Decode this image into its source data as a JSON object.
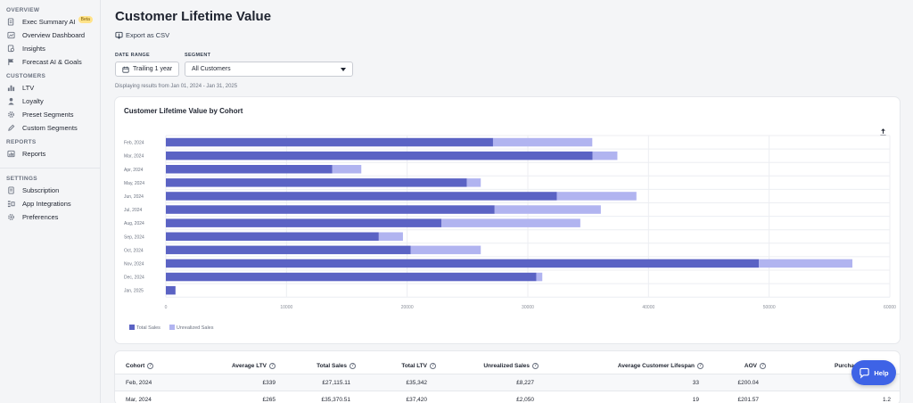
{
  "sidebar": {
    "overview_heading": "OVERVIEW",
    "overview_items": [
      {
        "label": "Exec Summary AI",
        "icon": "ai-document-icon",
        "badge": "Beta"
      },
      {
        "label": "Overview Dashboard",
        "icon": "dashboard-icon"
      },
      {
        "label": "Insights",
        "icon": "insights-icon"
      },
      {
        "label": "Forecast AI & Goals",
        "icon": "flag-icon"
      }
    ],
    "customers_heading": "CUSTOMERS",
    "customers_items": [
      {
        "label": "LTV",
        "icon": "bar-chart-icon"
      },
      {
        "label": "Loyalty",
        "icon": "person-icon"
      },
      {
        "label": "Preset Segments",
        "icon": "gear-icon"
      },
      {
        "label": "Custom Segments",
        "icon": "pencil-icon"
      }
    ],
    "reports_heading": "REPORTS",
    "reports_items": [
      {
        "label": "Reports",
        "icon": "reports-icon"
      }
    ],
    "settings_heading": "SETTINGS",
    "settings_items": [
      {
        "label": "Subscription",
        "icon": "document-icon"
      },
      {
        "label": "App Integrations",
        "icon": "integrations-icon"
      },
      {
        "label": "Preferences",
        "icon": "gear-icon"
      }
    ]
  },
  "header": {
    "title": "Customer Lifetime Value",
    "export_label": "Export as CSV"
  },
  "filters": {
    "date_range_label": "DATE RANGE",
    "date_range_value": "Trailing 1 year",
    "segment_label": "SEGMENT",
    "segment_value": "All Customers",
    "displaying": "Displaying results from Jan 01, 2024 - Jan 31, 2025"
  },
  "chart_card": {
    "title": "Customer Lifetime Value by Cohort"
  },
  "chart_data": {
    "type": "bar",
    "orientation": "horizontal",
    "stacked": true,
    "title": "Customer Lifetime Value by Cohort",
    "categories": [
      "Feb, 2024",
      "Mar, 2024",
      "Apr, 2024",
      "May, 2024",
      "Jun, 2024",
      "Jul, 2024",
      "Aug, 2024",
      "Sep, 2024",
      "Oct, 2024",
      "Nov, 2024",
      "Dec, 2024",
      "Jan, 2025"
    ],
    "series": [
      {
        "name": "Total Sales",
        "color": "#5b63c4",
        "values": [
          27115,
          35371,
          13800,
          24950,
          32400,
          27250,
          22850,
          17650,
          20300,
          49150,
          30700,
          800
        ]
      },
      {
        "name": "Unrealized Sales",
        "color": "#b1b4f0",
        "values": [
          8227,
          2050,
          2400,
          1150,
          6600,
          8800,
          11500,
          2000,
          5800,
          7750,
          500,
          0
        ]
      }
    ],
    "xlim": [
      0,
      60000
    ],
    "xticks": [
      0,
      10000,
      20000,
      30000,
      40000,
      50000,
      60000
    ],
    "grid": true,
    "legend_position": "bottom-left"
  },
  "legend": {
    "total": "Total Sales",
    "unrealized": "Unrealized Sales"
  },
  "table": {
    "headers": {
      "cohort": "Cohort",
      "avg_ltv": "Average LTV",
      "total_sales": "Total Sales",
      "total_ltv": "Total LTV",
      "unrealized": "Unrealized Sales",
      "lifespan": "Average Customer Lifespan",
      "aov": "AOV",
      "purchase_freq": "Purchase F"
    },
    "rows": [
      {
        "cohort": "Feb, 2024",
        "avg_ltv": "£339",
        "total_sales": "£27,115.11",
        "total_ltv": "£35,342",
        "unrealized": "£8,227",
        "lifespan": "33",
        "aov": "£200.04",
        "purchase_freq": ""
      },
      {
        "cohort": "Mar, 2024",
        "avg_ltv": "£265",
        "total_sales": "£35,370.51",
        "total_ltv": "£37,420",
        "unrealized": "£2,050",
        "lifespan": "19",
        "aov": "£201.57",
        "purchase_freq": "1.2"
      }
    ]
  },
  "help": {
    "label": "Help"
  }
}
